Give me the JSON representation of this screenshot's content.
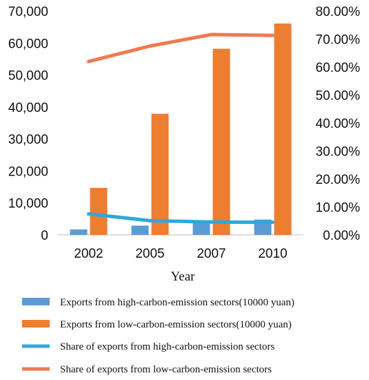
{
  "chart_data": {
    "type": "bar",
    "categories": [
      "2002",
      "2005",
      "2007",
      "2010"
    ],
    "xlabel": "Year",
    "y_left": {
      "range": [
        0,
        70000
      ],
      "ticks": [
        0,
        10000,
        20000,
        30000,
        40000,
        50000,
        60000,
        70000
      ],
      "tick_labels": [
        "0",
        "10,000",
        "20,000",
        "30,000",
        "40,000",
        "50,000",
        "60,000",
        "70,000"
      ]
    },
    "y_right": {
      "range": [
        0,
        0.8
      ],
      "ticks": [
        0,
        0.1,
        0.2,
        0.3,
        0.4,
        0.5,
        0.6,
        0.7,
        0.8
      ],
      "tick_labels": [
        "0.00%",
        "10.00%",
        "20.00%",
        "30.00%",
        "40.00%",
        "50.00%",
        "60.00%",
        "70.00%",
        "80.00%"
      ]
    },
    "grid": false,
    "legend_position": "bottom",
    "series": [
      {
        "name": "Exports from high-carbon-emission sectors(10000 yuan)",
        "kind": "bar",
        "axis": "left",
        "color": "#5B9BD5",
        "values": [
          1700,
          2900,
          4300,
          4800
        ]
      },
      {
        "name": "Exports from low-carbon-emission sectors(10000 yuan)",
        "kind": "bar",
        "axis": "left",
        "color": "#ED7D31",
        "values": [
          14700,
          37900,
          58200,
          66100
        ]
      },
      {
        "name": "Share of exports from high-carbon-emission sectors",
        "kind": "line",
        "axis": "right",
        "color": "#2FA8DC",
        "values": [
          0.075,
          0.051,
          0.046,
          0.045
        ]
      },
      {
        "name": "Share of exports from low-carbon-emission sectors",
        "kind": "line",
        "axis": "right",
        "color": "#F07A50",
        "values": [
          0.62,
          0.675,
          0.716,
          0.713
        ]
      }
    ]
  }
}
